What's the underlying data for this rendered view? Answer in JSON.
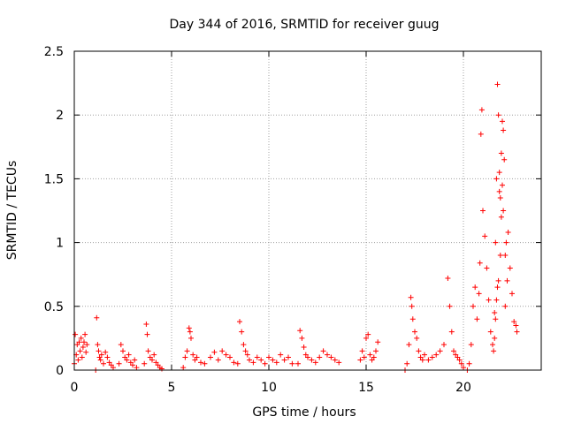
{
  "chart_data": {
    "type": "scatter",
    "title": "Day 344 of 2016, SRMTID for receiver guug",
    "xlabel": "GPS time / hours",
    "ylabel": "SRMTID / TECUs",
    "xlim": [
      0,
      24
    ],
    "ylim": [
      0,
      2.5
    ],
    "xticks": [
      0,
      5,
      10,
      15,
      20
    ],
    "xtick_labels": [
      "0",
      "5",
      "10",
      "15",
      "20"
    ],
    "yticks": [
      0,
      0.5,
      1,
      1.5,
      2,
      2.5
    ],
    "ytick_labels": [
      "0",
      "0.5",
      "1",
      "1.5",
      "2",
      "2.5"
    ],
    "grid": true,
    "marker": "+",
    "color": "#ff0000",
    "series": [
      {
        "name": "SRMTID",
        "x": [
          0.0,
          0.05,
          0.1,
          0.15,
          0.2,
          0.25,
          0.3,
          0.35,
          0.4,
          0.45,
          0.5,
          0.55,
          0.6,
          0.65,
          1.1,
          1.15,
          1.2,
          1.25,
          1.3,
          1.35,
          1.4,
          1.5,
          1.6,
          1.7,
          1.8,
          1.9,
          2.0,
          2.3,
          2.4,
          2.5,
          2.6,
          2.7,
          2.8,
          2.9,
          3.0,
          3.1,
          3.2,
          3.6,
          3.7,
          3.75,
          3.8,
          3.9,
          4.0,
          4.1,
          4.2,
          4.3,
          4.4,
          4.5,
          5.6,
          5.7,
          5.8,
          5.9,
          5.95,
          6.0,
          6.1,
          6.2,
          6.3,
          6.5,
          6.7,
          7.0,
          7.2,
          7.4,
          7.6,
          7.8,
          8.0,
          8.2,
          8.4,
          8.5,
          8.6,
          8.7,
          8.8,
          8.9,
          9.0,
          9.2,
          9.4,
          9.6,
          9.8,
          10.0,
          10.2,
          10.4,
          10.6,
          10.8,
          11.0,
          11.2,
          11.5,
          11.6,
          11.7,
          11.8,
          11.9,
          12.0,
          12.2,
          12.4,
          12.6,
          12.8,
          13.0,
          13.2,
          13.4,
          13.6,
          14.7,
          14.8,
          14.9,
          15.0,
          15.1,
          15.2,
          15.3,
          15.4,
          15.5,
          15.6,
          17.0,
          17.1,
          17.2,
          17.3,
          17.35,
          17.4,
          17.5,
          17.6,
          17.7,
          17.8,
          17.9,
          18.0,
          18.2,
          18.4,
          18.6,
          18.8,
          19.0,
          19.2,
          19.3,
          19.4,
          19.5,
          19.6,
          19.7,
          19.8,
          19.9,
          20.0,
          20.2,
          20.3,
          20.4,
          20.5,
          20.6,
          20.7,
          20.8,
          20.85,
          20.9,
          20.95,
          21.0,
          21.1,
          21.2,
          21.3,
          21.4,
          21.5,
          21.6,
          21.65,
          21.7,
          21.75,
          21.8,
          21.85,
          21.9,
          21.95,
          22.0,
          22.05,
          22.1,
          22.15,
          22.2,
          22.25,
          22.3,
          22.4,
          22.5,
          22.6,
          22.7,
          22.75,
          21.55,
          21.6,
          21.7,
          21.8,
          21.9,
          22.0,
          21.65,
          21.75,
          21.85,
          21.95,
          22.05,
          22.15
        ],
        "y": [
          0.05,
          0.28,
          0.12,
          0.2,
          0.08,
          0.22,
          0.15,
          0.25,
          0.1,
          0.18,
          0.22,
          0.28,
          0.14,
          0.2,
          0.0,
          0.41,
          0.2,
          0.15,
          0.1,
          0.08,
          0.12,
          0.05,
          0.14,
          0.1,
          0.06,
          0.04,
          0.02,
          0.05,
          0.2,
          0.15,
          0.1,
          0.08,
          0.12,
          0.06,
          0.04,
          0.08,
          0.02,
          0.05,
          0.36,
          0.28,
          0.15,
          0.1,
          0.08,
          0.12,
          0.06,
          0.04,
          0.02,
          0.01,
          0.02,
          0.1,
          0.15,
          0.33,
          0.3,
          0.25,
          0.12,
          0.08,
          0.1,
          0.06,
          0.05,
          0.1,
          0.14,
          0.08,
          0.15,
          0.12,
          0.1,
          0.06,
          0.05,
          0.38,
          0.3,
          0.2,
          0.15,
          0.12,
          0.08,
          0.06,
          0.1,
          0.08,
          0.05,
          0.1,
          0.08,
          0.06,
          0.12,
          0.08,
          0.1,
          0.05,
          0.05,
          0.31,
          0.25,
          0.18,
          0.12,
          0.1,
          0.08,
          0.06,
          0.1,
          0.15,
          0.12,
          0.1,
          0.08,
          0.06,
          0.08,
          0.15,
          0.1,
          0.25,
          0.28,
          0.12,
          0.08,
          0.1,
          0.15,
          0.22,
          0.0,
          0.05,
          0.2,
          0.57,
          0.5,
          0.4,
          0.3,
          0.25,
          0.15,
          0.1,
          0.08,
          0.12,
          0.08,
          0.1,
          0.12,
          0.15,
          0.2,
          0.72,
          0.5,
          0.3,
          0.15,
          0.12,
          0.1,
          0.08,
          0.05,
          0.02,
          0.0,
          0.05,
          0.2,
          0.5,
          0.65,
          0.4,
          0.6,
          0.84,
          1.85,
          2.04,
          1.25,
          1.05,
          0.8,
          0.55,
          0.3,
          0.2,
          0.45,
          1.0,
          1.5,
          2.24,
          2.0,
          1.55,
          1.35,
          1.2,
          1.95,
          1.88,
          1.65,
          0.9,
          1.0,
          0.7,
          1.08,
          0.8,
          0.6,
          0.38,
          0.35,
          0.3,
          0.15,
          0.25,
          0.55,
          0.7,
          0.9,
          1.45,
          0.4,
          0.65,
          1.4,
          1.7,
          1.25,
          0.5
        ]
      }
    ]
  }
}
